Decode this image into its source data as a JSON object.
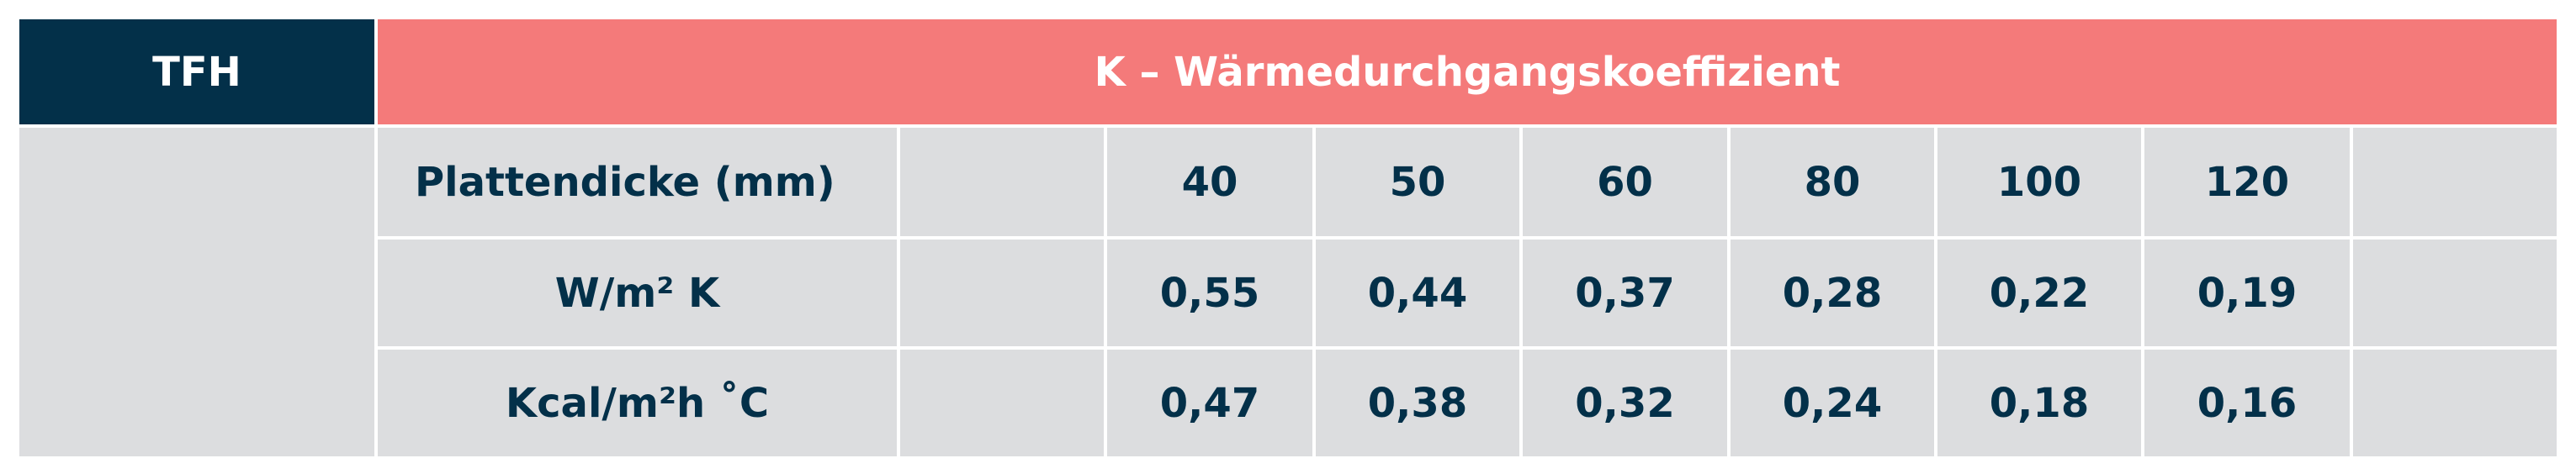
{
  "header": {
    "left": "TFH",
    "title": "K – Wärmedurchgangskoeffizient"
  },
  "table": {
    "rows": [
      [
        "Plattendicke (mm)",
        "40",
        "50",
        "60",
        "80",
        "100",
        "120"
      ],
      [
        "W/m² K",
        "0,55",
        "0,44",
        "0,37",
        "0,28",
        "0,22",
        "0,19"
      ],
      [
        "Kcal/m²h ˚C",
        "0,47",
        "0,38",
        "0,32",
        "0,24",
        "0,18",
        "0,16"
      ]
    ]
  }
}
